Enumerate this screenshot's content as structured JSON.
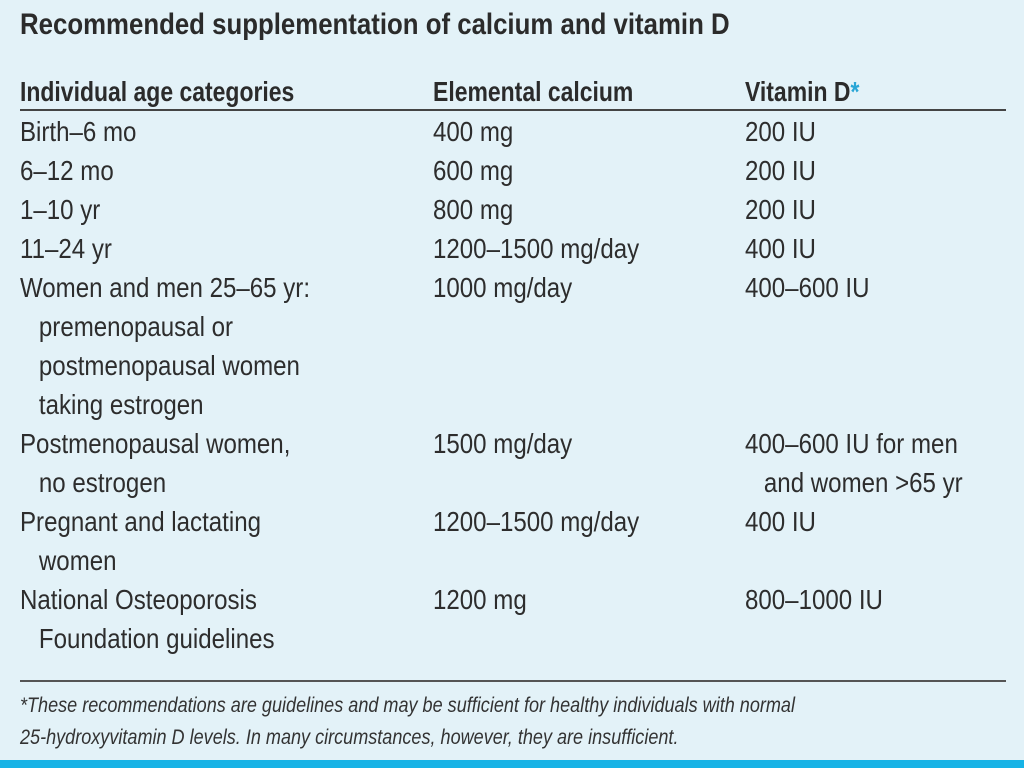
{
  "title": "Recommended supplementation of calcium and vitamin D",
  "columns": {
    "age": "Individual age categories",
    "calcium": "Elemental calcium",
    "vitamin_d": "Vitamin D",
    "vitamin_d_marker": "*"
  },
  "rows": [
    {
      "age": [
        "Birth–6 mo"
      ],
      "calcium": [
        "400 mg"
      ],
      "vitamin_d": [
        "200 IU"
      ]
    },
    {
      "age": [
        "6–12 mo"
      ],
      "calcium": [
        "600 mg"
      ],
      "vitamin_d": [
        "200 IU"
      ]
    },
    {
      "age": [
        "1–10 yr"
      ],
      "calcium": [
        "800 mg"
      ],
      "vitamin_d": [
        "200 IU"
      ]
    },
    {
      "age": [
        "11–24 yr"
      ],
      "calcium": [
        "1200–1500 mg/day"
      ],
      "vitamin_d": [
        "400 IU"
      ]
    },
    {
      "age": [
        "Women and men 25–65 yr:",
        "premenopausal or",
        "postmenopausal women",
        "taking estrogen"
      ],
      "calcium": [
        "1000 mg/day"
      ],
      "vitamin_d": [
        "400–600 IU"
      ]
    },
    {
      "age": [
        "Postmenopausal women,",
        "no estrogen"
      ],
      "calcium": [
        "1500 mg/day"
      ],
      "vitamin_d": [
        "400–600 IU for men",
        "and women >65 yr"
      ]
    },
    {
      "age": [
        "Pregnant and lactating",
        "women"
      ],
      "calcium": [
        "1200–1500 mg/day"
      ],
      "vitamin_d": [
        "400 IU"
      ]
    },
    {
      "age": [
        "National Osteoporosis",
        "Foundation guidelines"
      ],
      "calcium": [
        "1200 mg"
      ],
      "vitamin_d": [
        "800–1000 IU"
      ]
    }
  ],
  "footnote": [
    "*These recommendations are guidelines and may be sufficient for healthy individuals with normal",
    "25-hydroxyvitamin D levels. In many circumstances, however, they are insufficient."
  ],
  "colors": {
    "background": "#e3f2f8",
    "accent": "#17b3e6",
    "asterisk": "#29a6d6"
  }
}
